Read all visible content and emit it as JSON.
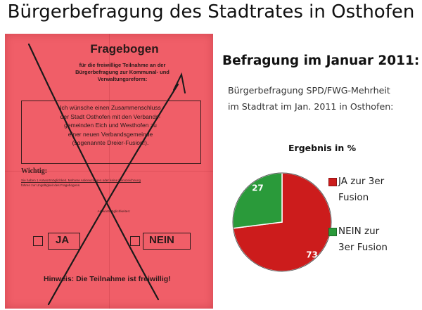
{
  "title": "Bürgerbefragung des Stadtrates in Osthofen",
  "headline": "Befragung im Januar 2011:",
  "subtitle_lines": [
    "Bürgerbefragung SPD/FWG-Mehrheit",
    "im Stadtrat im Jan. 2011 in Osthofen:"
  ],
  "ballot": {
    "title": "Fragebogen",
    "intro_lines": [
      "für die freiwillige Teilnahme an der",
      "Bürgerbefragung zur Kommunal- und",
      "Verwaltungsreform:"
    ],
    "statement_lines": [
      "Ich wünsche einen Zusammenschluss",
      "der Stadt Osthofen mit den Verbands-",
      "gemeinden Eich und Westhofen zu",
      "einer neuen Verbandsgemeinde",
      "(sogenannte Dreier-Fusion!)."
    ],
    "wichtig": "Wichtig:",
    "note_line1": "Sie haben 1 Antwortmöglichkeit. Mehrere Ankreuzungen oder keine Kennzeichnung",
    "note_line2": "führen zur Ungültigkeit des Fragebogens.",
    "antwort": "Antwortmöglichkeiten:",
    "option_ja": "JA",
    "option_nein": "NEIN",
    "hinweis": "Hinweis: Die Teilnahme ist freiwillig!"
  },
  "colors": {
    "ja": "#cc1c1c",
    "nein": "#2a9a3a",
    "ballot": "#f05e68",
    "ink": "#1a1a1a"
  },
  "chart_data": {
    "type": "pie",
    "title": "Ergebnis in %",
    "categories": [
      "JA zur 3er Fusion",
      "NEIN zur 3er Fusion"
    ],
    "values": [
      73,
      27
    ],
    "data_labels": [
      "73",
      "27"
    ],
    "legend": "right"
  },
  "legend": [
    {
      "lines": [
        "JA zur 3er",
        "Fusion"
      ]
    },
    {
      "lines": [
        "NEIN zur",
        "3er Fusion"
      ]
    }
  ]
}
